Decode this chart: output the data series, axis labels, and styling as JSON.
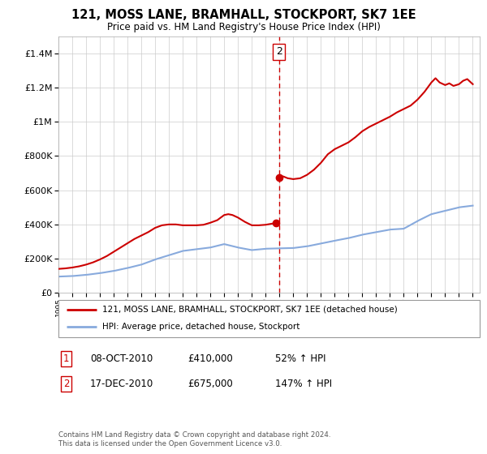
{
  "title": "121, MOSS LANE, BRAMHALL, STOCKPORT, SK7 1EE",
  "subtitle": "Price paid vs. HM Land Registry's House Price Index (HPI)",
  "legend_line1": "121, MOSS LANE, BRAMHALL, STOCKPORT, SK7 1EE (detached house)",
  "legend_line2": "HPI: Average price, detached house, Stockport",
  "sale1_date": "08-OCT-2010",
  "sale1_price": "£410,000",
  "sale1_hpi": "52% ↑ HPI",
  "sale2_date": "17-DEC-2010",
  "sale2_price": "£675,000",
  "sale2_hpi": "147% ↑ HPI",
  "footnote": "Contains HM Land Registry data © Crown copyright and database right 2024.\nThis data is licensed under the Open Government Licence v3.0.",
  "property_color": "#cc0000",
  "hpi_color": "#88aadd",
  "sale1_x": 2010.77,
  "sale1_y": 410000,
  "sale2_x": 2010.96,
  "sale2_y": 675000,
  "vline_x": 2010.96,
  "ylim": [
    0,
    1500000
  ],
  "xlim_start": 1995,
  "xlim_end": 2025.5,
  "background_color": "#ffffff",
  "grid_color": "#cccccc",
  "hpi_years": [
    1995,
    1996,
    1997,
    1998,
    1999,
    2000,
    2001,
    2002,
    2003,
    2004,
    2005,
    2006,
    2007,
    2008,
    2009,
    2010,
    2011,
    2012,
    2013,
    2014,
    2015,
    2016,
    2017,
    2018,
    2019,
    2020,
    2021,
    2022,
    2023,
    2024,
    2025
  ],
  "hpi_values": [
    95000,
    98000,
    105000,
    115000,
    128000,
    145000,
    165000,
    195000,
    220000,
    245000,
    255000,
    265000,
    285000,
    265000,
    250000,
    258000,
    260000,
    262000,
    272000,
    288000,
    305000,
    320000,
    340000,
    355000,
    370000,
    375000,
    420000,
    460000,
    480000,
    500000,
    510000
  ],
  "prop_years": [
    1995.0,
    1995.5,
    1996.0,
    1996.5,
    1997.0,
    1997.5,
    1998.0,
    1998.5,
    1999.0,
    1999.5,
    2000.0,
    2000.5,
    2001.0,
    2001.5,
    2002.0,
    2002.5,
    2003.0,
    2003.5,
    2004.0,
    2004.5,
    2005.0,
    2005.5,
    2006.0,
    2006.5,
    2007.0,
    2007.3,
    2007.6,
    2008.0,
    2008.5,
    2009.0,
    2009.5,
    2010.0,
    2010.5,
    2010.77,
    2010.96,
    2011.0,
    2011.3,
    2011.6,
    2012.0,
    2012.5,
    2013.0,
    2013.5,
    2014.0,
    2014.5,
    2015.0,
    2015.5,
    2016.0,
    2016.5,
    2017.0,
    2017.5,
    2018.0,
    2018.5,
    2019.0,
    2019.5,
    2020.0,
    2020.5,
    2021.0,
    2021.5,
    2022.0,
    2022.3,
    2022.6,
    2023.0,
    2023.3,
    2023.6,
    2024.0,
    2024.3,
    2024.6,
    2025.0
  ],
  "prop_values": [
    140000,
    143000,
    148000,
    155000,
    165000,
    178000,
    195000,
    215000,
    240000,
    265000,
    290000,
    315000,
    335000,
    355000,
    380000,
    395000,
    400000,
    400000,
    395000,
    395000,
    395000,
    398000,
    410000,
    425000,
    455000,
    460000,
    455000,
    440000,
    415000,
    395000,
    395000,
    398000,
    405000,
    410000,
    675000,
    685000,
    680000,
    670000,
    665000,
    670000,
    690000,
    720000,
    760000,
    810000,
    840000,
    860000,
    880000,
    910000,
    945000,
    970000,
    990000,
    1010000,
    1030000,
    1055000,
    1075000,
    1095000,
    1130000,
    1175000,
    1230000,
    1255000,
    1230000,
    1215000,
    1225000,
    1210000,
    1220000,
    1240000,
    1250000,
    1220000
  ]
}
